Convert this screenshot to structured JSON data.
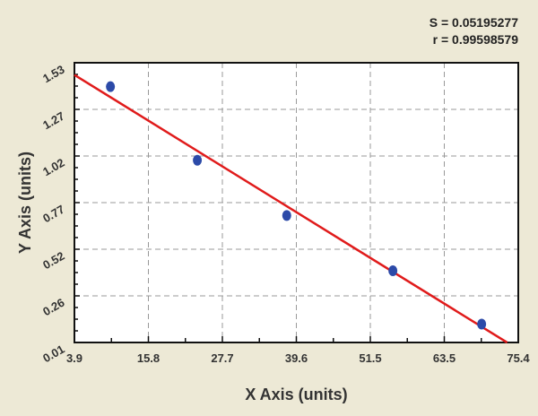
{
  "chart_data": {
    "type": "scatter",
    "title": "",
    "xlabel": "X Axis (units)",
    "ylabel": "Y Axis (units)",
    "xlim": [
      3.9,
      75.4
    ],
    "ylim": [
      0.01,
      1.53
    ],
    "xticks": [
      "3.9",
      "15.8",
      "27.7",
      "39.6",
      "51.5",
      "63.5",
      "75.4"
    ],
    "yticks": [
      "0.01",
      "0.26",
      "0.52",
      "0.77",
      "1.02",
      "1.27",
      "1.53"
    ],
    "grid": true,
    "points": [
      {
        "x": 9.7,
        "y": 1.4
      },
      {
        "x": 23.7,
        "y": 1.0
      },
      {
        "x": 38.1,
        "y": 0.7
      },
      {
        "x": 55.2,
        "y": 0.4
      },
      {
        "x": 69.5,
        "y": 0.11
      }
    ],
    "fit_line": {
      "x": [
        3.9,
        73.6
      ],
      "y": [
        1.464,
        0.01
      ]
    },
    "annotations": [
      "S = 0.05195277",
      "r = 0.99598579"
    ],
    "colors": {
      "points": "#2c4aa8",
      "fit": "#e01b1b",
      "background": "#ede9d6",
      "plot": "#ffffff"
    }
  }
}
